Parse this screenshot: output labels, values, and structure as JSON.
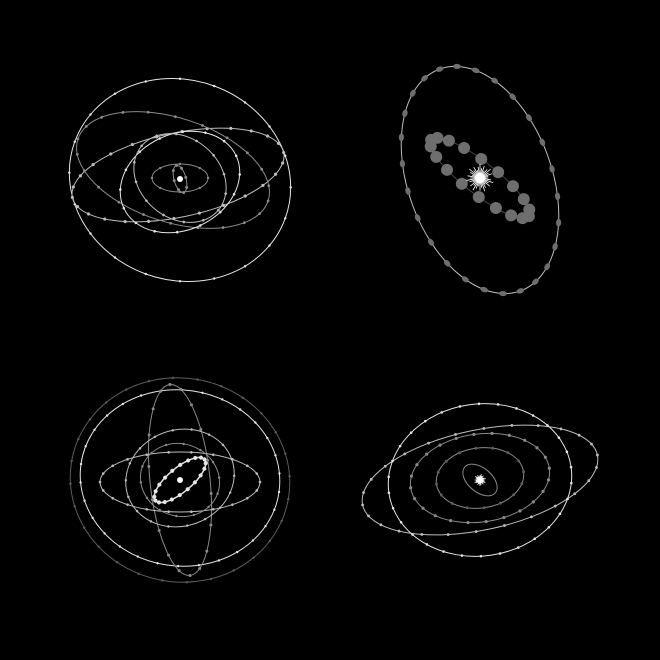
{
  "colors": {
    "background": "#000000",
    "orbit_bright": "#e6e6e6",
    "orbit_mid": "#bdbdbd",
    "orbit_dim": "#8a8a8a",
    "orbit_faint": "#5c5c5c",
    "bead_gray": "#6e6e6e",
    "star": "#ffffff"
  },
  "panels": [
    {
      "id": "top-left",
      "description_icon": "orbit-cluster-icon"
    },
    {
      "id": "top-right",
      "description_icon": "orbit-ring-icon"
    },
    {
      "id": "bottom-left",
      "description_icon": "orbit-cluster-icon"
    },
    {
      "id": "bottom-right",
      "description_icon": "orbit-ring-icon"
    }
  ]
}
